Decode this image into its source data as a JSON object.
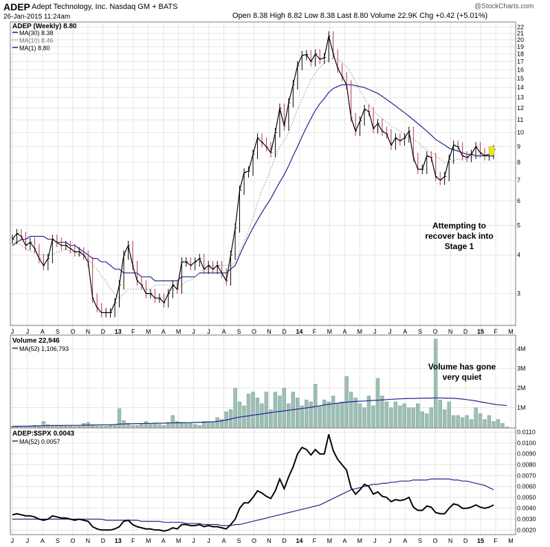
{
  "header": {
    "symbol": "ADEP",
    "company": "Adept Technology, Inc.  Nasdaq GM + BATS",
    "datetime": "26-Jan-2015 11:24am",
    "ohlc_text": "Open 8.38   High 8.82   Low 8.38   Last 8.80   Volume 22.9K   Chg +0.42 (+5.01%)",
    "ohlc_arrow": "▲",
    "watermark": "@StockCharts.com"
  },
  "colors": {
    "price": "#000000",
    "down_bar": "#b03050",
    "ma_long": "#1f1f8f",
    "ma_short": "#a0a0a0",
    "volume_bar": "#9dbfb5",
    "volume_edge": "#6f948a",
    "grid": "#e4e4e4",
    "highlight": "#f2e600"
  },
  "chart_data": [
    {
      "type": "line",
      "panel": "price",
      "title": "ADEP (Weekly) 8.80",
      "scale": "log",
      "ylim": [
        2.4,
        22.5
      ],
      "yticks": [
        3,
        4,
        5,
        6,
        7,
        8,
        9,
        10,
        11,
        12,
        13,
        14,
        15,
        16,
        17,
        18,
        19,
        20,
        21,
        22
      ],
      "legend": [
        "ADEP (Weekly) 8.80",
        "MA(30) 8.38",
        "MA(10) 8.46",
        "MA(1) 8.80"
      ],
      "x_labels": [
        "J",
        "J",
        "A",
        "S",
        "O",
        "N",
        "D",
        "13",
        "F",
        "M",
        "A",
        "M",
        "J",
        "J",
        "A",
        "S",
        "O",
        "N",
        "D",
        "14",
        "F",
        "M",
        "A",
        "M",
        "J",
        "J",
        "A",
        "S",
        "O",
        "N",
        "D",
        "15",
        "F",
        "M"
      ],
      "annotation": [
        "Attempting to",
        "recover back into",
        "Stage 1"
      ],
      "series": [
        {
          "name": "ADEP",
          "values": [
            4.5,
            4.7,
            4.6,
            4.3,
            4.4,
            4.2,
            3.9,
            3.7,
            3.9,
            4.5,
            4.4,
            4.3,
            4.3,
            4.2,
            4.1,
            4.1,
            4.0,
            3.8,
            2.9,
            2.7,
            2.6,
            2.6,
            2.6,
            2.8,
            3.2,
            4.0,
            4.3,
            3.7,
            3.3,
            3.2,
            3.0,
            3.0,
            2.9,
            2.9,
            2.8,
            3.0,
            3.2,
            3.1,
            3.8,
            3.8,
            3.7,
            3.8,
            3.9,
            3.6,
            3.7,
            3.6,
            3.7,
            3.5,
            3.3,
            4.0,
            4.9,
            6.5,
            7.4,
            7.5,
            8.5,
            9.6,
            9.3,
            9.0,
            8.6,
            10.0,
            12.0,
            10.5,
            12.5,
            14.3,
            16.5,
            17.8,
            17.9,
            17.0,
            18.0,
            17.3,
            17.5,
            20.6,
            18.0,
            16.2,
            15.2,
            14.3,
            11.2,
            10.1,
            10.9,
            11.9,
            11.7,
            10.3,
            10.7,
            10.1,
            9.9,
            9.1,
            9.6,
            9.4,
            9.6,
            10.1,
            8.3,
            7.6,
            7.6,
            8.4,
            8.3,
            7.2,
            7.0,
            7.2,
            8.2,
            9.1,
            9.0,
            8.4,
            8.3,
            8.5,
            9.0,
            8.6,
            8.4,
            8.5,
            8.8
          ]
        },
        {
          "name": "MA(30)",
          "values": [
            4.3,
            4.4,
            4.5,
            4.5,
            4.6,
            4.6,
            4.6,
            4.6,
            4.5,
            4.5,
            4.4,
            4.4,
            4.4,
            4.3,
            4.3,
            4.2,
            4.1,
            4.0,
            3.9,
            3.9,
            3.8,
            3.8,
            3.7,
            3.6,
            3.6,
            3.5,
            3.5,
            3.5,
            3.5,
            3.4,
            3.4,
            3.4,
            3.3,
            3.3,
            3.3,
            3.3,
            3.3,
            3.3,
            3.4,
            3.4,
            3.4,
            3.4,
            3.5,
            3.5,
            3.5,
            3.5,
            3.5,
            3.5,
            3.5,
            3.6,
            3.7,
            4.0,
            4.3,
            4.6,
            4.9,
            5.2,
            5.5,
            5.8,
            6.1,
            6.5,
            6.9,
            7.3,
            7.8,
            8.4,
            9.0,
            9.7,
            10.4,
            11.1,
            11.8,
            12.4,
            12.9,
            13.5,
            13.9,
            14.1,
            14.3,
            14.3,
            14.3,
            14.2,
            14.1,
            14.0,
            13.8,
            13.6,
            13.4,
            13.1,
            12.8,
            12.5,
            12.2,
            11.9,
            11.6,
            11.3,
            11.0,
            10.7,
            10.4,
            10.1,
            9.8,
            9.5,
            9.3,
            9.1,
            8.9,
            8.8,
            8.7,
            8.6,
            8.5,
            8.5,
            8.4,
            8.4,
            8.4,
            8.4,
            8.38
          ]
        },
        {
          "name": "MA(10)",
          "values": [
            4.5,
            4.4,
            4.3,
            4.2,
            4.1,
            4.1,
            4.0,
            4.0,
            4.0,
            4.0,
            4.1,
            4.1,
            4.2,
            4.1,
            4.1,
            4.0,
            4.0,
            3.9,
            3.7,
            3.6,
            3.4,
            3.3,
            3.1,
            3.0,
            2.9,
            3.0,
            3.1,
            3.1,
            3.1,
            3.1,
            3.1,
            3.1,
            3.2,
            3.2,
            3.2,
            3.2,
            3.1,
            3.1,
            3.2,
            3.3,
            3.3,
            3.4,
            3.5,
            3.6,
            3.6,
            3.7,
            3.7,
            3.7,
            3.7,
            3.7,
            3.8,
            4.1,
            4.4,
            4.8,
            5.3,
            5.9,
            6.5,
            7.0,
            7.6,
            8.3,
            9.0,
            9.4,
            10.0,
            10.9,
            11.9,
            12.8,
            13.8,
            14.8,
            15.6,
            16.3,
            16.8,
            17.3,
            17.4,
            17.3,
            16.9,
            16.4,
            15.6,
            14.6,
            13.7,
            12.9,
            12.3,
            11.8,
            11.4,
            11.1,
            10.8,
            10.5,
            10.3,
            10.1,
            9.9,
            9.7,
            9.5,
            9.3,
            9.0,
            8.8,
            8.6,
            8.4,
            8.2,
            8.0,
            8.0,
            8.1,
            8.2,
            8.2,
            8.2,
            8.3,
            8.4,
            8.5,
            8.5,
            8.5,
            8.46
          ]
        }
      ]
    },
    {
      "type": "bar",
      "panel": "volume",
      "title": "Volume 22,946",
      "ylim": [
        0,
        4.6
      ],
      "yunit": "M",
      "yticks": [
        1,
        2,
        3,
        4
      ],
      "ytick_labels": [
        "1M",
        "2M",
        "3M",
        "4M"
      ],
      "legend": [
        "Volume 22,946",
        "MA(52) 1,106,793"
      ],
      "annotation": [
        "Volume has gone",
        "very quiet"
      ],
      "series": [
        {
          "name": "Volume",
          "values": [
            0.05,
            0.07,
            0.05,
            0.06,
            0.08,
            0.1,
            0.06,
            0.3,
            0.15,
            0.1,
            0.08,
            0.07,
            0.1,
            0.06,
            0.05,
            0.06,
            0.2,
            0.25,
            0.08,
            0.06,
            0.05,
            0.07,
            0.1,
            0.1,
            0.95,
            0.35,
            0.2,
            0.1,
            0.1,
            0.15,
            0.3,
            0.2,
            0.18,
            0.15,
            0.1,
            0.25,
            0.6,
            0.3,
            0.25,
            0.2,
            0.2,
            0.15,
            0.1,
            0.3,
            0.3,
            0.25,
            0.5,
            0.4,
            0.8,
            0.9,
            2.0,
            1.3,
            1.1,
            1.7,
            1.8,
            1.5,
            1.2,
            1.8,
            0.9,
            1.8,
            1.6,
            2.0,
            1.2,
            1.8,
            1.5,
            1.1,
            1.4,
            1.3,
            2.2,
            1.1,
            1.4,
            1.3,
            1.6,
            1.2,
            1.3,
            2.6,
            1.8,
            1.5,
            1.2,
            1.0,
            1.6,
            1.1,
            2.5,
            1.6,
            1.3,
            1.0,
            1.3,
            1.1,
            1.2,
            1.0,
            1.0,
            1.2,
            0.8,
            0.7,
            1.0,
            4.5,
            1.4,
            0.9,
            1.3,
            0.6,
            0.6,
            0.5,
            0.6,
            0.4,
            1.0,
            0.7,
            0.4,
            0.6,
            0.3,
            0.4,
            0.2,
            0.02
          ]
        },
        {
          "name": "MA(52)",
          "values": [
            0.05,
            0.05,
            0.06,
            0.06,
            0.06,
            0.07,
            0.07,
            0.08,
            0.08,
            0.09,
            0.09,
            0.09,
            0.1,
            0.1,
            0.1,
            0.1,
            0.11,
            0.11,
            0.12,
            0.12,
            0.12,
            0.13,
            0.13,
            0.14,
            0.16,
            0.17,
            0.18,
            0.18,
            0.19,
            0.19,
            0.2,
            0.2,
            0.21,
            0.21,
            0.21,
            0.22,
            0.22,
            0.23,
            0.23,
            0.24,
            0.24,
            0.25,
            0.25,
            0.26,
            0.27,
            0.28,
            0.3,
            0.33,
            0.37,
            0.42,
            0.48,
            0.52,
            0.55,
            0.58,
            0.62,
            0.65,
            0.68,
            0.72,
            0.75,
            0.78,
            0.81,
            0.84,
            0.87,
            0.9,
            0.93,
            0.96,
            0.99,
            1.02,
            1.06,
            1.1,
            1.14,
            1.17,
            1.2,
            1.23,
            1.26,
            1.28,
            1.3,
            1.32,
            1.33,
            1.34,
            1.36,
            1.37,
            1.38,
            1.4,
            1.41,
            1.43,
            1.44,
            1.45,
            1.46,
            1.47,
            1.47,
            1.48,
            1.49,
            1.49,
            1.49,
            1.5,
            1.5,
            1.49,
            1.49,
            1.48,
            1.46,
            1.44,
            1.41,
            1.38,
            1.35,
            1.3,
            1.26,
            1.22,
            1.18,
            1.15,
            1.13,
            1.107
          ]
        }
      ]
    },
    {
      "type": "line",
      "panel": "ratio",
      "title": "ADEP:$SPX 0.0043",
      "ylim": [
        0.0017,
        0.0112
      ],
      "yticks": [
        0.002,
        0.003,
        0.004,
        0.005,
        0.006,
        0.007,
        0.008,
        0.009,
        0.01,
        0.011
      ],
      "ytick_labels": [
        "0.0020",
        "0.0030",
        "0.0040",
        "0.0050",
        "0.0060",
        "0.0070",
        "0.0080",
        "0.0090",
        "0.0100",
        "0.0110"
      ],
      "legend": [
        "ADEP:$SPX 0.0043",
        "MA(52) 0.0057"
      ],
      "series": [
        {
          "name": "ADEP:$SPX",
          "values": [
            0.0034,
            0.0035,
            0.0034,
            0.0033,
            0.0033,
            0.0032,
            0.003,
            0.0029,
            0.003,
            0.0033,
            0.0032,
            0.0031,
            0.0031,
            0.003,
            0.0029,
            0.003,
            0.0029,
            0.0028,
            0.0023,
            0.0021,
            0.002,
            0.002,
            0.002,
            0.0021,
            0.0023,
            0.0028,
            0.0029,
            0.0025,
            0.0023,
            0.0022,
            0.0021,
            0.0021,
            0.002,
            0.002,
            0.0019,
            0.002,
            0.0022,
            0.0021,
            0.0025,
            0.0025,
            0.0024,
            0.0024,
            0.0025,
            0.0023,
            0.0024,
            0.0023,
            0.0023,
            0.0022,
            0.0021,
            0.0025,
            0.003,
            0.004,
            0.0045,
            0.0045,
            0.005,
            0.0056,
            0.0054,
            0.0051,
            0.0049,
            0.0056,
            0.0067,
            0.0058,
            0.0069,
            0.0078,
            0.009,
            0.0096,
            0.0094,
            0.0089,
            0.0094,
            0.009,
            0.009,
            0.0108,
            0.0093,
            0.0085,
            0.008,
            0.0075,
            0.0059,
            0.0053,
            0.0057,
            0.0062,
            0.006,
            0.0053,
            0.0055,
            0.0051,
            0.005,
            0.0046,
            0.0048,
            0.0047,
            0.0048,
            0.005,
            0.0041,
            0.0038,
            0.0038,
            0.0042,
            0.0041,
            0.0036,
            0.0035,
            0.0035,
            0.004,
            0.0044,
            0.0043,
            0.004,
            0.004,
            0.0041,
            0.0043,
            0.0041,
            0.004,
            0.0041,
            0.0043
          ]
        },
        {
          "name": "MA(52)",
          "values": [
            0.003,
            0.003,
            0.003,
            0.003,
            0.003,
            0.003,
            0.003,
            0.003,
            0.003,
            0.003,
            0.003,
            0.003,
            0.003,
            0.003,
            0.003,
            0.003,
            0.003,
            0.003,
            0.003,
            0.003,
            0.003,
            0.0029,
            0.0029,
            0.0029,
            0.0029,
            0.0029,
            0.0029,
            0.0029,
            0.0029,
            0.0028,
            0.0028,
            0.0028,
            0.0028,
            0.0028,
            0.0027,
            0.0027,
            0.0027,
            0.0027,
            0.0027,
            0.0026,
            0.0026,
            0.0026,
            0.0026,
            0.0025,
            0.0025,
            0.0025,
            0.0025,
            0.0024,
            0.0024,
            0.0024,
            0.0025,
            0.0025,
            0.0026,
            0.0027,
            0.0028,
            0.0029,
            0.003,
            0.0031,
            0.0032,
            0.0033,
            0.0034,
            0.0035,
            0.0036,
            0.0037,
            0.0038,
            0.0039,
            0.004,
            0.0041,
            0.0042,
            0.0043,
            0.0045,
            0.0047,
            0.0049,
            0.0051,
            0.0053,
            0.0055,
            0.0057,
            0.0058,
            0.0059,
            0.006,
            0.0061,
            0.0062,
            0.0062,
            0.0063,
            0.0063,
            0.0064,
            0.0064,
            0.0065,
            0.0065,
            0.0065,
            0.0066,
            0.0066,
            0.0066,
            0.0066,
            0.0067,
            0.0067,
            0.0067,
            0.0067,
            0.0067,
            0.0066,
            0.0066,
            0.0065,
            0.0065,
            0.0064,
            0.0063,
            0.0062,
            0.0061,
            0.0059,
            0.0057
          ]
        }
      ]
    }
  ]
}
